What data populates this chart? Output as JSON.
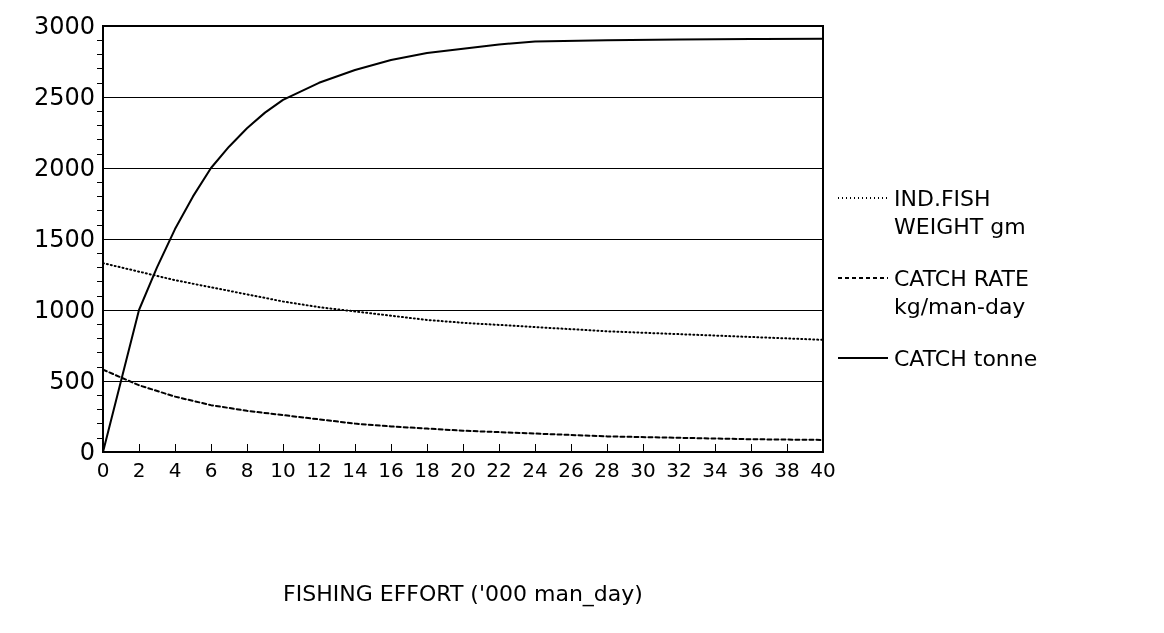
{
  "chart_data": {
    "type": "line",
    "xlabel": "FISHING EFFORT ('000 man_day)",
    "xlim": [
      0,
      40
    ],
    "xticks": [
      0,
      2,
      4,
      6,
      8,
      10,
      12,
      14,
      16,
      18,
      20,
      22,
      24,
      26,
      28,
      30,
      32,
      34,
      36,
      38,
      40
    ],
    "ylim": [
      0,
      3000
    ],
    "yticks": [
      0,
      500,
      1000,
      1500,
      2000,
      2500,
      3000
    ],
    "grid": "y",
    "legend": "right",
    "marker": "none",
    "series": [
      {
        "name": "IND.FISH WEIGHT gm",
        "color": "#000000",
        "line_style": "dotted",
        "x": [
          0,
          2,
          4,
          6,
          8,
          10,
          12,
          14,
          16,
          18,
          20,
          24,
          28,
          32,
          36,
          40
        ],
        "values": [
          1330,
          1270,
          1210,
          1160,
          1110,
          1060,
          1020,
          990,
          960,
          930,
          910,
          880,
          850,
          830,
          810,
          790
        ]
      },
      {
        "name": "CATCH RATE kg/man-day",
        "color": "#000000",
        "line_style": "dashed",
        "x": [
          0,
          2,
          4,
          6,
          8,
          10,
          12,
          14,
          16,
          18,
          20,
          24,
          28,
          32,
          36,
          40
        ],
        "values": [
          580,
          470,
          390,
          330,
          290,
          260,
          230,
          200,
          180,
          165,
          150,
          130,
          110,
          100,
          90,
          85
        ]
      },
      {
        "name": "CATCH tonne",
        "color": "#000000",
        "line_style": "solid",
        "x": [
          0,
          1,
          2,
          3,
          4,
          5,
          6,
          7,
          8,
          9,
          10,
          12,
          14,
          16,
          18,
          20,
          22,
          24,
          28,
          32,
          36,
          40
        ],
        "values": [
          0,
          500,
          1000,
          1300,
          1570,
          1800,
          2000,
          2150,
          2280,
          2390,
          2480,
          2600,
          2690,
          2760,
          2810,
          2840,
          2870,
          2890,
          2900,
          2905,
          2908,
          2910
        ]
      }
    ]
  }
}
